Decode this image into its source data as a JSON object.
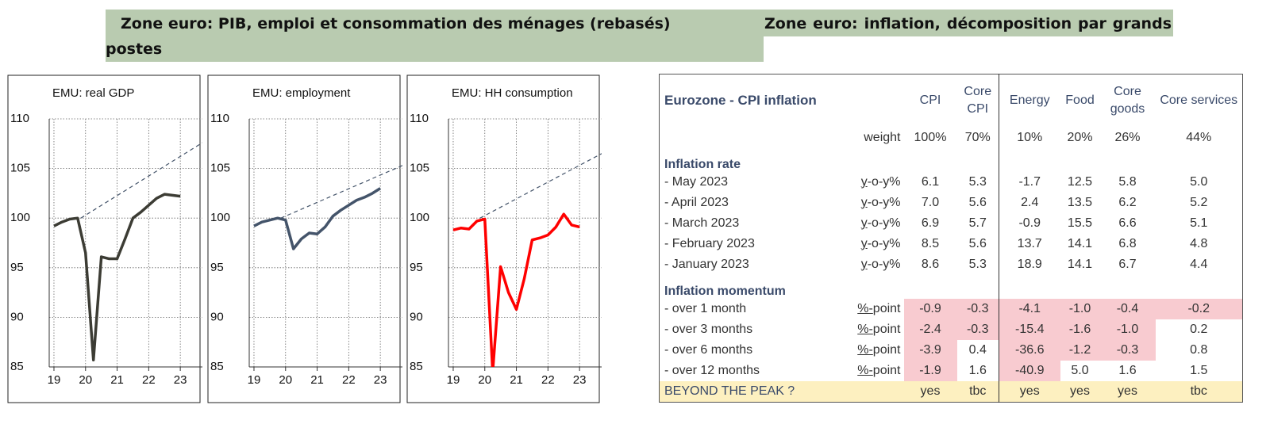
{
  "header": {
    "left_title": "Zone euro: PIB, emploi et consommation des ménages (rebasés)",
    "right_title": "Zone euro: inflation, décomposition par grands postes"
  },
  "chart_data": [
    {
      "type": "line",
      "title": "EMU: real GDP",
      "xlim": [
        18.85,
        23.7
      ],
      "xticks": [
        19,
        20,
        21,
        22,
        23
      ],
      "ylim": [
        85,
        110
      ],
      "yticks": [
        85,
        90,
        95,
        100,
        105,
        110
      ],
      "grid": true,
      "series": [
        {
          "color": "#3c3c34",
          "x": [
            19,
            19.25,
            19.5,
            19.75,
            20,
            20.25,
            20.5,
            20.75,
            21,
            21.25,
            21.5,
            21.75,
            22,
            22.25,
            22.5,
            22.75,
            23
          ],
          "values": [
            99.2,
            99.6,
            99.9,
            100.0,
            96.5,
            85.7,
            96.1,
            95.9,
            95.9,
            97.9,
            100.0,
            100.6,
            101.3,
            102.0,
            102.4,
            102.3,
            102.2
          ]
        },
        {
          "color": "#44546a",
          "dashed": true,
          "x": [
            19.85,
            23.7
          ],
          "values": [
            100.0,
            107.6
          ]
        }
      ]
    },
    {
      "type": "line",
      "title": "EMU: employment",
      "xlim": [
        18.85,
        23.7
      ],
      "xticks": [
        19,
        20,
        21,
        22,
        23
      ],
      "ylim": [
        85,
        110
      ],
      "yticks": [
        85,
        90,
        95,
        100,
        105,
        110
      ],
      "grid": true,
      "series": [
        {
          "color": "#44546a",
          "x": [
            19,
            19.25,
            19.5,
            19.75,
            20,
            20.25,
            20.5,
            20.75,
            21,
            21.25,
            21.5,
            21.75,
            22,
            22.25,
            22.5,
            22.75,
            23
          ],
          "values": [
            99.2,
            99.6,
            99.8,
            100.0,
            99.8,
            96.9,
            97.9,
            98.5,
            98.4,
            99.1,
            100.2,
            100.8,
            101.3,
            101.8,
            102.1,
            102.5,
            103.0
          ]
        },
        {
          "color": "#44546a",
          "dashed": true,
          "x": [
            19.85,
            23.7
          ],
          "values": [
            100.0,
            105.3
          ]
        }
      ]
    },
    {
      "type": "line",
      "title": "EMU: HH consumption",
      "xlim": [
        18.85,
        23.7
      ],
      "xticks": [
        19,
        20,
        21,
        22,
        23
      ],
      "ylim": [
        85,
        110
      ],
      "yticks": [
        85,
        90,
        95,
        100,
        105,
        110
      ],
      "grid": true,
      "series": [
        {
          "color": "#ff0000",
          "x": [
            19,
            19.25,
            19.5,
            19.75,
            20,
            20.25,
            20.5,
            20.75,
            21,
            21.25,
            21.5,
            21.75,
            22,
            22.25,
            22.5,
            22.75,
            23
          ],
          "values": [
            98.8,
            99.0,
            98.9,
            99.7,
            99.9,
            84.5,
            95.1,
            92.5,
            90.8,
            93.9,
            97.8,
            98.0,
            98.3,
            99.1,
            100.4,
            99.3,
            99.1
          ]
        },
        {
          "color": "#44546a",
          "dashed": true,
          "x": [
            19.85,
            23.7
          ],
          "values": [
            100.0,
            106.5
          ]
        }
      ]
    }
  ],
  "table": {
    "title": "Eurozone - CPI inflation",
    "columns": [
      "CPI",
      "Core CPI",
      "Energy",
      "Food",
      "Core goods",
      "Core services"
    ],
    "weight": {
      "label": "weight",
      "values": [
        "100%",
        "70%",
        "10%",
        "20%",
        "26%",
        "44%"
      ]
    },
    "sections": [
      {
        "title": "Inflation rate",
        "rows": [
          {
            "label": "- May 2023",
            "unit": "y-o-y%",
            "values": [
              "6.1",
              "5.3",
              "-1.7",
              "12.5",
              "5.8",
              "5.0"
            ]
          },
          {
            "label": "- April 2023",
            "unit": "y-o-y%",
            "values": [
              "7.0",
              "5.6",
              "2.4",
              "13.5",
              "6.2",
              "5.2"
            ]
          },
          {
            "label": "- March 2023",
            "unit": "y-o-y%",
            "values": [
              "6.9",
              "5.7",
              "-0.9",
              "15.5",
              "6.6",
              "5.1"
            ]
          },
          {
            "label": "- February 2023",
            "unit": "y-o-y%",
            "values": [
              "8.5",
              "5.6",
              "13.7",
              "14.1",
              "6.8",
              "4.8"
            ]
          },
          {
            "label": "- January 2023",
            "unit": "y-o-y%",
            "values": [
              "8.6",
              "5.3",
              "18.9",
              "14.1",
              "6.7",
              "4.4"
            ]
          }
        ]
      },
      {
        "title": "Inflation momentum",
        "rows": [
          {
            "label": "- over 1 month",
            "unit": "%-point",
            "values": [
              "-0.9",
              "-0.3",
              "-4.1",
              "-1.0",
              "-0.4",
              "-0.2"
            ],
            "highlight": [
              true,
              true,
              true,
              true,
              true,
              true
            ]
          },
          {
            "label": "- over 3 months",
            "unit": "%-point",
            "values": [
              "-2.4",
              "-0.3",
              "-15.4",
              "-1.6",
              "-1.0",
              "0.2"
            ],
            "highlight": [
              true,
              true,
              true,
              true,
              true,
              false
            ]
          },
          {
            "label": "- over 6 months",
            "unit": "%-point",
            "values": [
              "-3.9",
              "0.4",
              "-36.6",
              "-1.2",
              "-0.3",
              "0.8"
            ],
            "highlight": [
              true,
              false,
              true,
              true,
              true,
              false
            ]
          },
          {
            "label": "- over 12 months",
            "unit": "%-point",
            "values": [
              "-1.9",
              "1.6",
              "-40.9",
              "5.0",
              "1.6",
              "1.5"
            ],
            "highlight": [
              true,
              false,
              true,
              false,
              false,
              false
            ]
          }
        ]
      }
    ],
    "footer": {
      "label": "BEYOND THE PEAK ?",
      "values": [
        "yes",
        "tbc",
        "yes",
        "yes",
        "yes",
        "tbc"
      ]
    },
    "highlight_color": "#f8cbd0",
    "footer_color": "#fdf0c0"
  }
}
